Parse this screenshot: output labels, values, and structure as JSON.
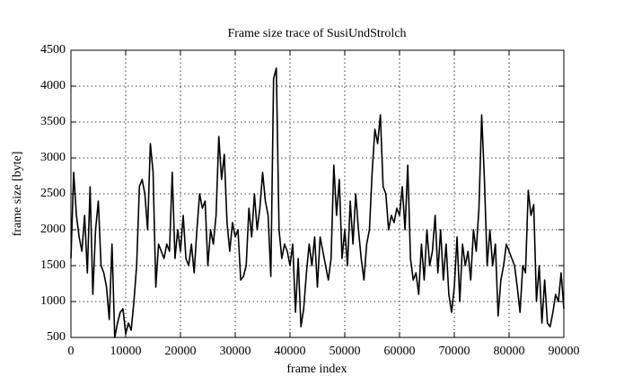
{
  "chart_data": {
    "type": "line",
    "title": "Frame size trace of SusiUndStrolch",
    "x_label": "frame index",
    "y_label": "frame size [byte]",
    "xlim": [
      0,
      90000
    ],
    "ylim": [
      500,
      4500
    ],
    "xticks": [
      0,
      10000,
      20000,
      30000,
      40000,
      50000,
      60000,
      70000,
      80000,
      90000
    ],
    "yticks": [
      500,
      1000,
      1500,
      2000,
      2500,
      3000,
      3500,
      4000,
      4500
    ],
    "grid": true,
    "series": [
      {
        "color": "#000000",
        "x": [
          0,
          500,
          1000,
          1500,
          2000,
          2500,
          3000,
          3500,
          4000,
          4500,
          5000,
          5500,
          6000,
          6500,
          7000,
          7500,
          8000,
          8500,
          9000,
          9500,
          10000,
          10500,
          11000,
          11500,
          12000,
          12500,
          13000,
          13500,
          14000,
          14500,
          15000,
          15500,
          16000,
          16500,
          17000,
          17500,
          18000,
          18500,
          19000,
          19500,
          20000,
          20500,
          21000,
          21500,
          22000,
          22500,
          23000,
          23500,
          24000,
          24500,
          25000,
          25500,
          26000,
          26500,
          27000,
          27500,
          28000,
          28500,
          29000,
          29500,
          30000,
          30500,
          31000,
          31500,
          32000,
          32500,
          33000,
          33500,
          34000,
          34500,
          35000,
          35500,
          36000,
          36500,
          37000,
          37500,
          38000,
          38500,
          39000,
          39500,
          40000,
          40500,
          41000,
          41500,
          42000,
          42500,
          43000,
          43500,
          44000,
          44500,
          45000,
          45500,
          46000,
          46500,
          47000,
          47500,
          48000,
          48500,
          49000,
          49500,
          50000,
          50500,
          51000,
          51500,
          52000,
          52500,
          53000,
          53500,
          54000,
          54500,
          55000,
          55500,
          56000,
          56500,
          57000,
          57500,
          58000,
          58500,
          59000,
          59500,
          60000,
          60500,
          61000,
          61500,
          62000,
          62500,
          63000,
          63500,
          64000,
          64500,
          65000,
          65500,
          66000,
          66500,
          67000,
          67500,
          68000,
          68500,
          69000,
          69500,
          70000,
          70500,
          71000,
          71500,
          72000,
          72500,
          73000,
          73500,
          74000,
          74500,
          75000,
          75500,
          76000,
          76500,
          77000,
          77500,
          78000,
          78500,
          79000,
          79500,
          80000,
          80500,
          81000,
          81500,
          82000,
          82500,
          83000,
          83500,
          84000,
          84500,
          85000,
          85500,
          86000,
          86500,
          87000,
          87500,
          88000,
          88500,
          89000,
          89500,
          90000
        ],
        "values": [
          1600,
          2800,
          2200,
          1900,
          1700,
          2200,
          1400,
          2600,
          1100,
          2000,
          2400,
          1500,
          1400,
          1200,
          750,
          1800,
          500,
          700,
          850,
          900,
          550,
          700,
          600,
          1000,
          1500,
          2600,
          2700,
          2500,
          2000,
          3200,
          2800,
          1200,
          1800,
          1700,
          1600,
          1800,
          1700,
          2800,
          1600,
          2000,
          1700,
          2200,
          1600,
          1500,
          1800,
          1400,
          2000,
          2500,
          2300,
          2400,
          1500,
          2000,
          1800,
          2200,
          3300,
          2700,
          3050,
          2100,
          1700,
          2100,
          1900,
          2000,
          1300,
          1350,
          1500,
          2300,
          1900,
          2500,
          2000,
          2300,
          2800,
          2400,
          2200,
          1350,
          4100,
          4250,
          2000,
          1600,
          1800,
          1700,
          1500,
          1800,
          850,
          1600,
          650,
          900,
          1400,
          1800,
          1500,
          1900,
          1200,
          1900,
          1700,
          1500,
          1300,
          1600,
          2900,
          2200,
          2700,
          1600,
          2000,
          1500,
          2400,
          1800,
          2500,
          2000,
          1600,
          1300,
          1800,
          2000,
          2800,
          3400,
          3200,
          3600,
          2600,
          2500,
          2000,
          2200,
          2100,
          2300,
          2200,
          2600,
          2000,
          2900,
          1600,
          1300,
          1400,
          1100,
          1800,
          1300,
          2000,
          1500,
          1700,
          2200,
          1400,
          2000,
          1300,
          1800,
          1100,
          850,
          1200,
          1900,
          1000,
          1800,
          1500,
          1700,
          1300,
          2000,
          1700,
          2300,
          3600,
          2700,
          1500,
          2000,
          1500,
          1800,
          800,
          1300,
          1500,
          1800,
          1700,
          1600,
          1500,
          1200,
          850,
          1500,
          1400,
          2550,
          2200,
          2350,
          1000,
          1500,
          700,
          1300,
          700,
          650,
          850,
          1100,
          1000,
          1400,
          900
        ]
      }
    ]
  }
}
